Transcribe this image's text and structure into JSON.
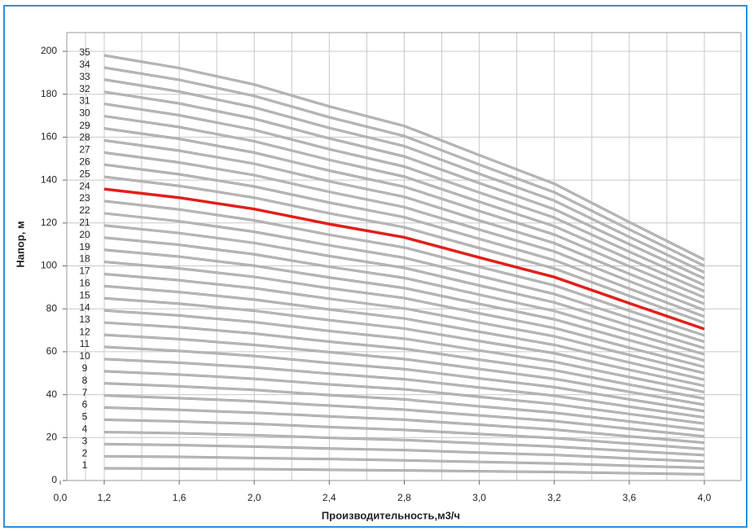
{
  "chart_data": {
    "type": "line",
    "x_label": "Производительность,м3/ч",
    "y_label": "Напор, м",
    "categories": [
      "0,0",
      "1,2",
      "1,6",
      "2,0",
      "2,4",
      "2,8",
      "3,0",
      "3,2",
      "3,6",
      "4,0"
    ],
    "ylim": [
      0,
      200
    ],
    "yticks": [
      0,
      20,
      40,
      60,
      80,
      100,
      120,
      140,
      160,
      180,
      200
    ],
    "grid": true,
    "series": [
      {
        "name": "1",
        "color": "#bdbdbd",
        "values": [
          null,
          5.7,
          5.5,
          5.3,
          5.0,
          4.7,
          4.3,
          4.0,
          3.4,
          2.9
        ]
      },
      {
        "name": "2",
        "color": "#bdbdbd",
        "values": [
          null,
          11.3,
          11.0,
          10.5,
          10.0,
          9.4,
          8.7,
          7.9,
          6.9,
          5.9
        ]
      },
      {
        "name": "3",
        "color": "#bdbdbd",
        "values": [
          null,
          17.0,
          16.5,
          15.8,
          14.9,
          14.2,
          13.0,
          11.9,
          10.3,
          8.8
        ]
      },
      {
        "name": "4",
        "color": "#bdbdbd",
        "values": [
          null,
          22.6,
          22.0,
          21.1,
          19.9,
          18.9,
          17.3,
          15.8,
          13.8,
          11.8
        ]
      },
      {
        "name": "5",
        "color": "#bdbdbd",
        "values": [
          null,
          28.3,
          27.5,
          26.4,
          24.9,
          23.6,
          21.7,
          19.8,
          17.2,
          14.7
        ]
      },
      {
        "name": "6",
        "color": "#bdbdbd",
        "values": [
          null,
          34.0,
          32.9,
          31.6,
          29.9,
          28.3,
          26.0,
          23.7,
          20.6,
          17.6
        ]
      },
      {
        "name": "7",
        "color": "#bdbdbd",
        "values": [
          null,
          39.6,
          38.4,
          36.9,
          34.9,
          33.0,
          30.3,
          27.7,
          24.1,
          20.6
        ]
      },
      {
        "name": "8",
        "color": "#bdbdbd",
        "values": [
          null,
          45.3,
          43.9,
          42.2,
          39.8,
          37.8,
          34.6,
          31.6,
          27.5,
          23.5
        ]
      },
      {
        "name": "9",
        "color": "#bdbdbd",
        "values": [
          null,
          50.9,
          49.4,
          47.4,
          44.8,
          42.5,
          39.0,
          35.6,
          31.0,
          26.5
        ]
      },
      {
        "name": "10",
        "color": "#bdbdbd",
        "values": [
          null,
          56.6,
          54.9,
          52.7,
          49.8,
          47.2,
          43.3,
          39.5,
          34.4,
          29.4
        ]
      },
      {
        "name": "11",
        "color": "#bdbdbd",
        "values": [
          null,
          62.3,
          60.4,
          58.0,
          54.8,
          51.9,
          47.6,
          43.5,
          37.8,
          32.3
        ]
      },
      {
        "name": "12",
        "color": "#bdbdbd",
        "values": [
          null,
          67.9,
          65.9,
          63.2,
          59.8,
          56.6,
          52.0,
          47.4,
          41.3,
          35.3
        ]
      },
      {
        "name": "13",
        "color": "#bdbdbd",
        "values": [
          null,
          73.6,
          71.4,
          68.5,
          64.7,
          61.4,
          56.3,
          51.4,
          44.7,
          38.2
        ]
      },
      {
        "name": "14",
        "color": "#bdbdbd",
        "values": [
          null,
          79.2,
          76.9,
          73.8,
          69.7,
          66.1,
          60.6,
          55.3,
          48.2,
          41.2
        ]
      },
      {
        "name": "15",
        "color": "#bdbdbd",
        "values": [
          null,
          84.9,
          82.4,
          79.1,
          74.7,
          70.8,
          65.0,
          59.3,
          51.6,
          44.1
        ]
      },
      {
        "name": "16",
        "color": "#bdbdbd",
        "values": [
          null,
          90.6,
          87.8,
          84.3,
          79.7,
          75.5,
          69.3,
          63.2,
          55.0,
          47.0
        ]
      },
      {
        "name": "17",
        "color": "#bdbdbd",
        "values": [
          null,
          96.2,
          93.3,
          89.6,
          84.7,
          80.2,
          73.6,
          67.2,
          58.5,
          50.0
        ]
      },
      {
        "name": "18",
        "color": "#bdbdbd",
        "values": [
          null,
          101.9,
          98.8,
          94.9,
          89.6,
          85.0,
          77.9,
          71.1,
          61.9,
          52.9
        ]
      },
      {
        "name": "19",
        "color": "#bdbdbd",
        "values": [
          null,
          107.5,
          104.3,
          100.1,
          94.6,
          89.7,
          82.3,
          75.1,
          65.4,
          55.9
        ]
      },
      {
        "name": "20",
        "color": "#bdbdbd",
        "values": [
          null,
          113.2,
          109.8,
          105.4,
          99.6,
          94.4,
          86.6,
          79.0,
          68.8,
          58.8
        ]
      },
      {
        "name": "21",
        "color": "#bdbdbd",
        "values": [
          null,
          118.9,
          115.3,
          110.7,
          104.6,
          99.1,
          90.9,
          83.0,
          72.2,
          61.7
        ]
      },
      {
        "name": "22",
        "color": "#bdbdbd",
        "values": [
          null,
          124.5,
          120.8,
          115.9,
          109.6,
          103.8,
          95.3,
          86.9,
          75.7,
          64.7
        ]
      },
      {
        "name": "23",
        "color": "#bdbdbd",
        "values": [
          null,
          130.2,
          126.3,
          121.2,
          114.5,
          108.6,
          99.6,
          90.9,
          79.1,
          67.6
        ]
      },
      {
        "name": "24",
        "color": "#e0201b",
        "values": [
          null,
          135.8,
          131.8,
          126.5,
          119.5,
          113.3,
          103.9,
          94.8,
          82.6,
          70.6
        ]
      },
      {
        "name": "25",
        "color": "#bdbdbd",
        "values": [
          null,
          141.5,
          137.3,
          131.8,
          124.5,
          118.0,
          108.3,
          98.8,
          86.0,
          73.5
        ]
      },
      {
        "name": "26",
        "color": "#bdbdbd",
        "values": [
          null,
          147.2,
          142.7,
          137.0,
          129.5,
          122.7,
          112.6,
          102.7,
          89.4,
          76.4
        ]
      },
      {
        "name": "27",
        "color": "#bdbdbd",
        "values": [
          null,
          152.8,
          148.2,
          142.3,
          134.5,
          127.4,
          116.9,
          106.7,
          92.9,
          79.4
        ]
      },
      {
        "name": "28",
        "color": "#bdbdbd",
        "values": [
          null,
          158.5,
          153.7,
          147.6,
          139.4,
          132.2,
          121.2,
          110.6,
          96.3,
          82.3
        ]
      },
      {
        "name": "29",
        "color": "#bdbdbd",
        "values": [
          null,
          164.1,
          159.2,
          152.8,
          144.4,
          136.9,
          125.6,
          114.6,
          99.8,
          85.3
        ]
      },
      {
        "name": "30",
        "color": "#bdbdbd",
        "values": [
          null,
          169.8,
          164.7,
          158.1,
          149.4,
          141.6,
          129.9,
          118.5,
          103.2,
          88.2
        ]
      },
      {
        "name": "31",
        "color": "#bdbdbd",
        "values": [
          null,
          175.5,
          170.2,
          163.4,
          154.4,
          146.3,
          134.2,
          122.5,
          106.6,
          91.1
        ]
      },
      {
        "name": "32",
        "color": "#bdbdbd",
        "values": [
          null,
          181.1,
          175.7,
          168.6,
          159.4,
          151.0,
          138.6,
          126.4,
          110.1,
          94.1
        ]
      },
      {
        "name": "33",
        "color": "#bdbdbd",
        "values": [
          null,
          186.8,
          181.2,
          173.9,
          164.3,
          155.8,
          142.9,
          130.4,
          113.5,
          97.0
        ]
      },
      {
        "name": "34",
        "color": "#bdbdbd",
        "values": [
          null,
          192.4,
          186.7,
          179.2,
          169.3,
          160.5,
          147.2,
          134.3,
          117.0,
          100.0
        ]
      },
      {
        "name": "35",
        "color": "#bdbdbd",
        "values": [
          null,
          198.1,
          192.2,
          184.5,
          174.3,
          165.2,
          151.6,
          138.3,
          120.4,
          102.9
        ]
      }
    ]
  }
}
